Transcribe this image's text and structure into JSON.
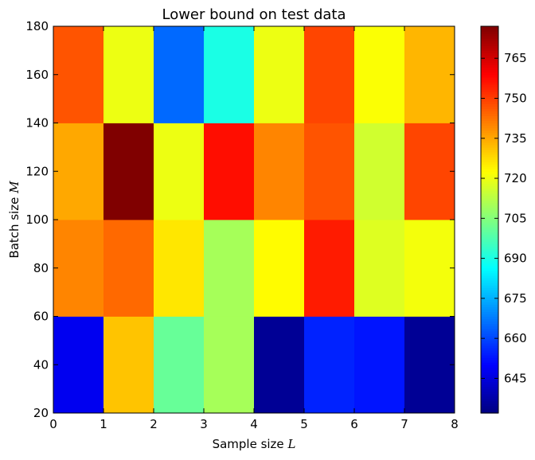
{
  "chart_data": {
    "type": "heatmap",
    "title": "Lower bound on test data",
    "xlabel": "Sample size",
    "xlabel_symbol": "L",
    "ylabel": "Batch size",
    "ylabel_symbol": "M",
    "xlim": [
      0,
      8
    ],
    "ylim": [
      20,
      180
    ],
    "x_edges": [
      0,
      1,
      2,
      3,
      4,
      5,
      6,
      7,
      8
    ],
    "y_edges": [
      20,
      60,
      100,
      140,
      180
    ],
    "x_ticks": [
      "0",
      "1",
      "2",
      "3",
      "4",
      "5",
      "6",
      "7",
      "8"
    ],
    "y_ticks": [
      "20",
      "40",
      "60",
      "80",
      "100",
      "120",
      "140",
      "160",
      "180"
    ],
    "colormap": "jet",
    "vmin": 632,
    "vmax": 777,
    "colorbar_ticks": [
      "645",
      "660",
      "675",
      "690",
      "705",
      "720",
      "735",
      "750",
      "765"
    ],
    "rows": [
      {
        "y_range": [
          20,
          60
        ],
        "values": [
          648,
          731,
          701,
          710,
          635,
          655,
          653,
          635
        ]
      },
      {
        "y_range": [
          60,
          100
        ],
        "values": [
          740,
          744,
          726,
          710,
          723,
          755,
          718,
          721
        ]
      },
      {
        "y_range": [
          100,
          140
        ],
        "values": [
          735,
          777,
          720,
          757,
          740,
          747,
          716,
          749
        ]
      },
      {
        "y_range": [
          140,
          180
        ],
        "values": [
          747,
          720,
          665,
          690,
          720,
          749,
          722,
          733
        ]
      }
    ]
  }
}
